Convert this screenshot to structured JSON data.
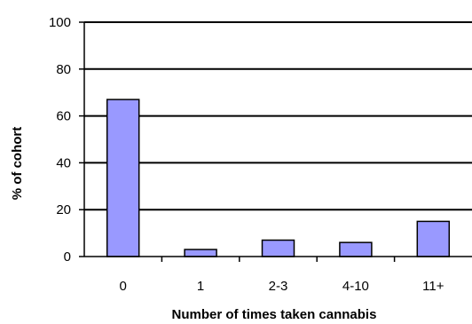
{
  "chart_data": {
    "type": "bar",
    "categories": [
      "0",
      "1",
      "2-3",
      "4-10",
      "11+"
    ],
    "values": [
      67,
      3,
      7,
      6,
      15
    ],
    "title": "",
    "xlabel": "Number of times taken cannabis",
    "ylabel": "% of cohort",
    "ylim": [
      0,
      100
    ],
    "yticks": [
      0,
      20,
      40,
      60,
      80,
      100
    ],
    "grid": true,
    "bar_color": "#9999ff",
    "bar_edge_color": "#000000"
  }
}
